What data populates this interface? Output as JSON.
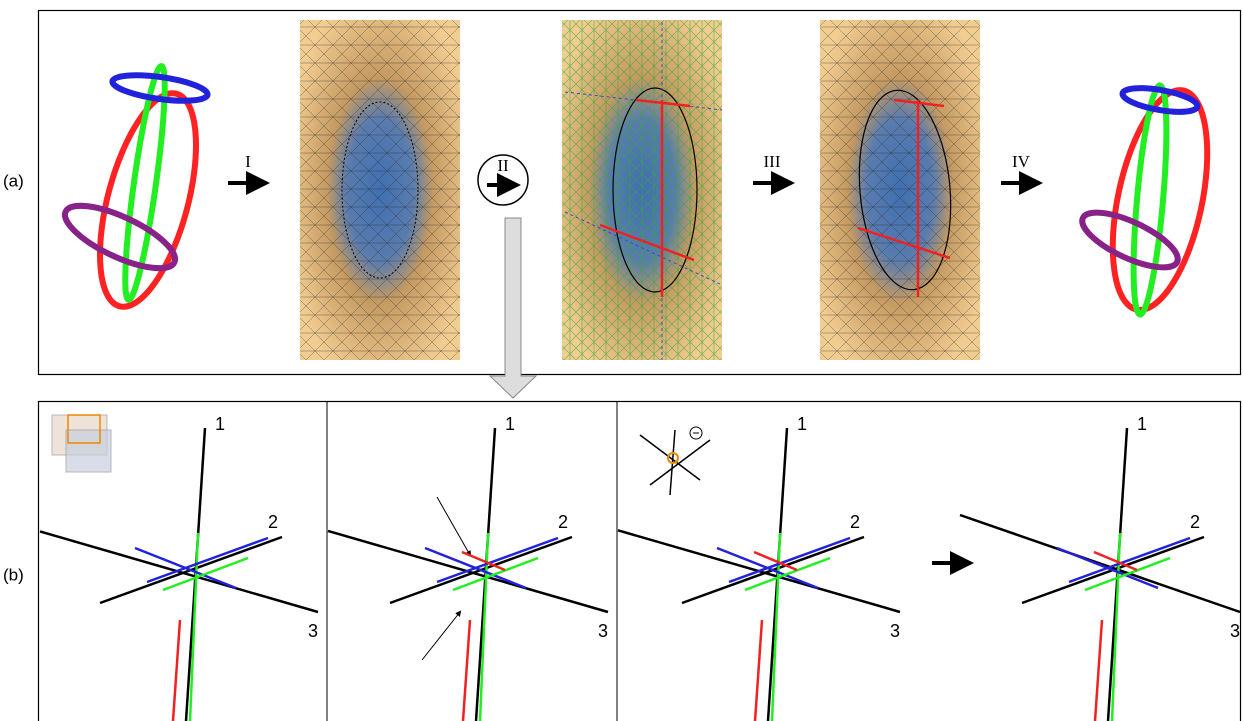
{
  "panel_a": {
    "label": "(a)",
    "steps": [
      "I",
      "II",
      "III",
      "IV"
    ]
  },
  "panel_b": {
    "label": "(b)",
    "subpanels": [
      {
        "axes": [
          "1",
          "2",
          "3"
        ]
      },
      {
        "axes": [
          "1",
          "2",
          "3"
        ]
      },
      {
        "axes": [
          "1",
          "2",
          "3"
        ]
      },
      {
        "axes": [
          "1",
          "2",
          "3"
        ]
      }
    ]
  }
}
